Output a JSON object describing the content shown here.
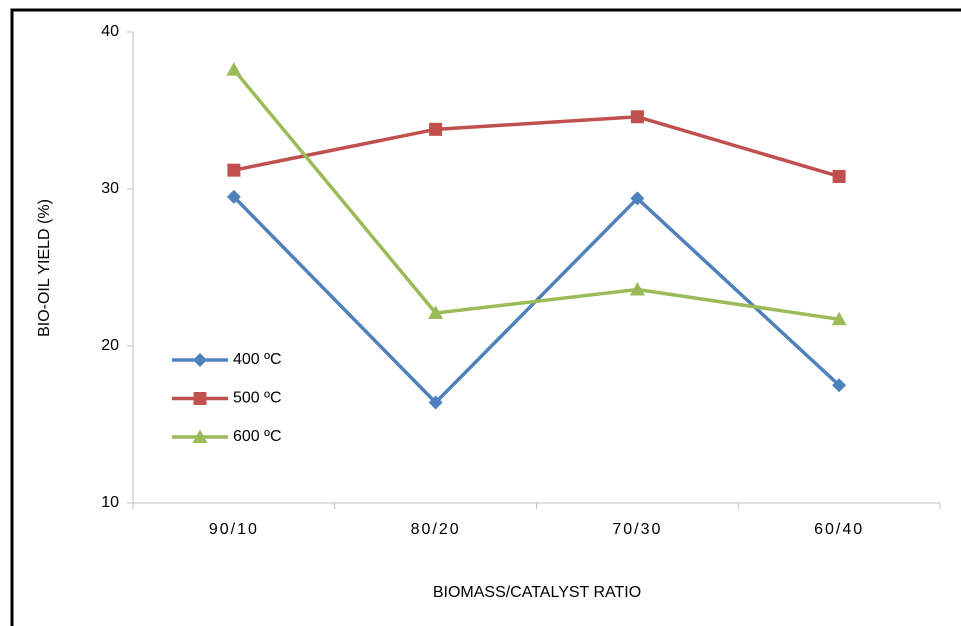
{
  "chart_data": {
    "type": "line",
    "x_label": "BIOMASS/CATALYST RATIO",
    "y_label": "BIO-OIL YIELD (%)",
    "categories": [
      "90/10",
      "80/20",
      "70/30",
      "60/40"
    ],
    "series": [
      {
        "name": "400 ºC",
        "color": "#4f81bd",
        "marker": "diamond",
        "values": [
          29.5,
          16.4,
          29.4,
          17.5
        ]
      },
      {
        "name": "500 ºC",
        "color": "#c0504d",
        "marker": "square",
        "values": [
          31.2,
          33.8,
          34.6,
          30.8
        ]
      },
      {
        "name": "600 ºC",
        "color": "#9bbb59",
        "marker": "triangle",
        "values": [
          37.6,
          22.1,
          23.6,
          21.7
        ]
      }
    ],
    "ylim": [
      10,
      40
    ],
    "yticks": [
      10,
      20,
      30,
      40
    ],
    "grid": false,
    "legend": "left"
  }
}
